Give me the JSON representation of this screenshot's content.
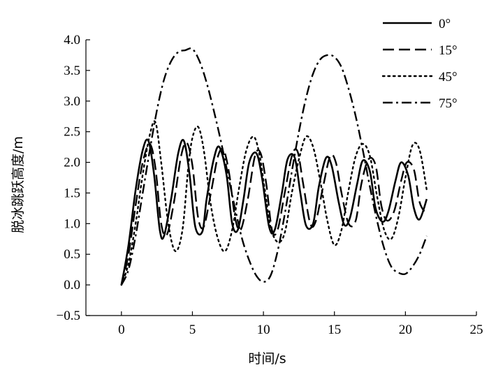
{
  "chart_data": {
    "type": "line",
    "title": "",
    "xlabel": "时间/s",
    "ylabel": "脱冰跳跃高度/m",
    "xlim": [
      -2.5,
      25
    ],
    "ylim": [
      -0.5,
      4.0
    ],
    "x_ticks": [
      "0",
      "5",
      "10",
      "15",
      "20",
      "25"
    ],
    "y_ticks": [
      "−0.5",
      "0.0",
      "0.5",
      "1.0",
      "1.5",
      "2.0",
      "2.5",
      "3.0",
      "3.5",
      "4.0"
    ],
    "grid": false,
    "legend_position": "top-right",
    "series": [
      {
        "name": "0°",
        "dash": "solid",
        "x": [
          0,
          0.5,
          1.0,
          1.5,
          1.9,
          2.3,
          2.7,
          3.0,
          3.5,
          4.0,
          4.4,
          4.8,
          5.2,
          5.7,
          6.0,
          6.5,
          6.9,
          7.4,
          7.8,
          8.2,
          8.6,
          9.0,
          9.5,
          9.9,
          10.4,
          10.8,
          11.3,
          11.7,
          12.2,
          12.6,
          13.0,
          13.5,
          13.9,
          14.4,
          14.8,
          15.3,
          15.7,
          16.1,
          16.6,
          17.0,
          17.5,
          17.9,
          18.4,
          18.8,
          19.3,
          19.7,
          20.2,
          20.6,
          21.0,
          21.5
        ],
        "y": [
          0.0,
          0.65,
          1.55,
          2.2,
          2.35,
          1.8,
          0.9,
          0.8,
          1.4,
          2.15,
          2.35,
          1.8,
          0.95,
          0.87,
          1.4,
          2.05,
          2.25,
          1.8,
          1.0,
          0.9,
          1.4,
          2.0,
          2.15,
          1.75,
          0.95,
          0.9,
          1.5,
          2.05,
          2.08,
          1.5,
          0.97,
          1.0,
          1.6,
          2.07,
          1.95,
          1.35,
          0.98,
          1.1,
          1.65,
          2.03,
          1.85,
          1.25,
          1.03,
          1.2,
          1.7,
          2.0,
          1.78,
          1.25,
          1.07,
          1.4
        ]
      },
      {
        "name": "15°",
        "dash": "long-dash",
        "x": [
          0,
          0.5,
          1.0,
          1.5,
          2.0,
          2.4,
          2.8,
          3.2,
          3.7,
          4.2,
          4.6,
          5.0,
          5.4,
          5.8,
          6.3,
          6.8,
          7.2,
          7.6,
          8.0,
          8.4,
          8.9,
          9.4,
          9.8,
          10.2,
          10.6,
          11.0,
          11.5,
          12.0,
          12.4,
          12.8,
          13.3,
          13.7,
          14.2,
          14.7,
          15.1,
          15.5,
          16.0,
          16.5,
          16.9,
          17.4,
          17.9,
          18.3,
          18.7,
          19.2,
          19.7,
          20.1,
          20.6,
          21.0,
          21.5
        ],
        "y": [
          0.0,
          0.5,
          1.3,
          2.0,
          2.3,
          1.9,
          1.0,
          0.82,
          1.35,
          2.1,
          2.32,
          1.95,
          1.1,
          0.95,
          1.5,
          2.1,
          2.2,
          1.8,
          1.1,
          0.9,
          1.4,
          2.1,
          2.15,
          1.65,
          0.9,
          0.9,
          1.5,
          2.1,
          2.18,
          1.65,
          1.0,
          1.05,
          1.6,
          2.1,
          2.0,
          1.5,
          1.0,
          1.05,
          1.65,
          2.05,
          1.95,
          1.3,
          1.05,
          1.2,
          1.7,
          2.0,
          1.88,
          1.35,
          1.15
        ]
      },
      {
        "name": "45°",
        "dash": "dotted",
        "x": [
          0,
          0.5,
          1.0,
          1.5,
          2.0,
          2.4,
          2.8,
          3.3,
          3.8,
          4.3,
          4.7,
          5.0,
          5.4,
          5.8,
          6.3,
          6.8,
          7.3,
          7.8,
          8.3,
          8.8,
          9.3,
          9.7,
          10.1,
          10.5,
          11.0,
          11.5,
          12.0,
          12.5,
          13.0,
          13.5,
          14.0,
          14.5,
          15.0,
          15.5,
          16.0,
          16.5,
          17.0,
          17.5,
          18.0,
          18.5,
          19.0,
          19.5,
          20.0,
          20.5,
          21.0,
          21.5
        ],
        "y": [
          0.0,
          0.35,
          1.0,
          1.8,
          2.45,
          2.65,
          2.0,
          1.0,
          0.55,
          0.9,
          1.9,
          2.4,
          2.58,
          2.2,
          1.3,
          0.75,
          0.55,
          0.9,
          1.6,
          2.2,
          2.42,
          2.15,
          1.55,
          0.95,
          0.7,
          0.85,
          1.5,
          2.05,
          2.42,
          2.25,
          1.7,
          1.05,
          0.65,
          0.9,
          1.55,
          2.1,
          2.3,
          2.1,
          1.45,
          0.9,
          0.75,
          1.1,
          1.75,
          2.28,
          2.2,
          1.55
        ]
      },
      {
        "name": "75°",
        "dash": "dash-dot",
        "x": [
          0,
          0.5,
          1.0,
          1.5,
          2.0,
          2.5,
          3.0,
          3.5,
          4.0,
          4.5,
          5.0,
          5.5,
          6.0,
          6.5,
          7.0,
          7.5,
          8.0,
          8.5,
          9.0,
          9.5,
          10.0,
          10.5,
          11.0,
          11.5,
          12.0,
          12.5,
          13.0,
          13.5,
          14.0,
          14.5,
          15.0,
          15.5,
          16.0,
          16.5,
          17.0,
          17.5,
          18.0,
          18.5,
          19.0,
          19.5,
          20.0,
          20.5,
          21.0,
          21.5
        ],
        "y": [
          0.0,
          0.25,
          0.8,
          1.5,
          2.2,
          2.85,
          3.35,
          3.65,
          3.8,
          3.83,
          3.85,
          3.65,
          3.3,
          2.85,
          2.35,
          1.8,
          1.25,
          0.75,
          0.4,
          0.15,
          0.05,
          0.15,
          0.55,
          1.15,
          1.85,
          2.5,
          3.05,
          3.45,
          3.68,
          3.75,
          3.72,
          3.55,
          3.2,
          2.75,
          2.2,
          1.6,
          1.05,
          0.6,
          0.3,
          0.2,
          0.18,
          0.3,
          0.5,
          0.8
        ]
      }
    ]
  }
}
